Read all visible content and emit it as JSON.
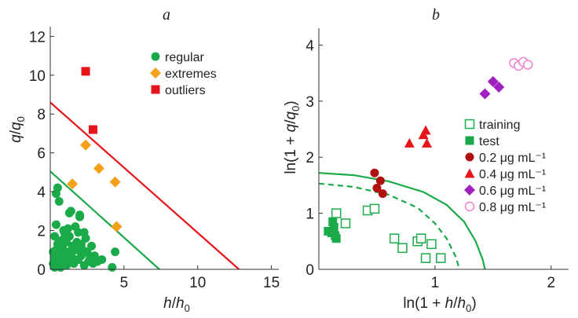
{
  "colors": {
    "regular": "#1aaa4a",
    "extremes": "#f5a01a",
    "outliers": "#e8141c",
    "line_red": "#e8141c",
    "line_green": "#1aaa4a",
    "training": "#1aaa4a",
    "test": "#1aaa4a",
    "c02": "#b01010",
    "c04": "#e8141c",
    "c06": "#a020c0",
    "c08": "#f080d0"
  },
  "chart_data": [
    {
      "type": "scatter",
      "panel_label": "a",
      "xlabel_parts": [
        "h",
        "/",
        "h",
        "0"
      ],
      "ylabel_parts": [
        "q",
        "/",
        "q",
        "0"
      ],
      "xlim": [
        0,
        15.5
      ],
      "ylim": [
        0,
        12.5
      ],
      "xticks": [
        5,
        10,
        15
      ],
      "yticks": [
        0,
        2,
        4,
        6,
        8,
        10,
        12
      ],
      "series": [
        {
          "name": "regular",
          "marker": "circle",
          "points": [
            [
              0.2,
              0.3
            ],
            [
              0.3,
              0.6
            ],
            [
              0.4,
              1.0
            ],
            [
              0.5,
              1.3
            ],
            [
              0.6,
              0.2
            ],
            [
              0.7,
              0.8
            ],
            [
              0.8,
              1.5
            ],
            [
              0.9,
              0.4
            ],
            [
              1.0,
              1.8
            ],
            [
              1.1,
              0.6
            ],
            [
              1.2,
              2.1
            ],
            [
              1.3,
              0.9
            ],
            [
              1.4,
              3.0
            ],
            [
              1.5,
              1.2
            ],
            [
              1.6,
              0.3
            ],
            [
              1.7,
              2.2
            ],
            [
              1.8,
              1.4
            ],
            [
              1.9,
              0.5
            ],
            [
              2.0,
              2.7
            ],
            [
              2.1,
              0.7
            ],
            [
              2.2,
              1.0
            ],
            [
              2.3,
              0.2
            ],
            [
              2.4,
              1.6
            ],
            [
              2.5,
              0.9
            ],
            [
              2.6,
              0.4
            ],
            [
              2.7,
              0.6
            ],
            [
              2.8,
              1.2
            ],
            [
              2.9,
              0.3
            ],
            [
              3.0,
              0.7
            ],
            [
              3.2,
              0.4
            ],
            [
              0.3,
              1.7
            ],
            [
              0.4,
              2.3
            ],
            [
              0.5,
              0.5
            ],
            [
              0.6,
              1.1
            ],
            [
              0.7,
              0.1
            ],
            [
              0.8,
              0.6
            ],
            [
              0.9,
              1.0
            ],
            [
              1.0,
              0.3
            ],
            [
              1.1,
              1.4
            ],
            [
              1.2,
              0.5
            ],
            [
              0.3,
              0.1
            ],
            [
              0.5,
              0.8
            ],
            [
              0.7,
              1.3
            ],
            [
              0.9,
              2.0
            ],
            [
              1.1,
              0.2
            ],
            [
              1.3,
              1.7
            ],
            [
              1.5,
              0.6
            ],
            [
              1.7,
              1.0
            ],
            [
              1.9,
              1.9
            ],
            [
              2.1,
              1.3
            ],
            [
              0.4,
              3.9
            ],
            [
              0.5,
              4.2
            ],
            [
              0.6,
              3.5
            ],
            [
              1.3,
              2.9
            ],
            [
              2.0,
              2.8
            ],
            [
              4.4,
              0.9
            ],
            [
              4.2,
              0.1
            ],
            [
              3.5,
              0.5
            ],
            [
              2.3,
              1.9
            ],
            [
              0.2,
              0.9
            ]
          ]
        },
        {
          "name": "extremes",
          "marker": "diamond",
          "points": [
            [
              1.5,
              4.4
            ],
            [
              2.4,
              6.4
            ],
            [
              3.3,
              5.2
            ],
            [
              4.4,
              4.5
            ],
            [
              4.5,
              2.2
            ]
          ]
        },
        {
          "name": "outliers",
          "marker": "square",
          "points": [
            [
              2.4,
              10.2
            ],
            [
              2.9,
              7.2
            ]
          ]
        }
      ],
      "lines": [
        {
          "color": "red",
          "from": [
            0,
            8.6
          ],
          "to": [
            12.8,
            0
          ]
        },
        {
          "color": "green",
          "from": [
            0,
            5.05
          ],
          "to": [
            7.4,
            0
          ]
        }
      ],
      "legend": [
        "regular",
        "extremes",
        "outliers"
      ],
      "legend_position": "top-right"
    },
    {
      "type": "scatter",
      "panel_label": "b",
      "xlabel_parts": [
        "ln(1 + ",
        "h",
        "/",
        "h",
        "0",
        ")"
      ],
      "ylabel_parts": [
        "ln(1 + ",
        "q",
        "/",
        "q",
        "0",
        ")"
      ],
      "xlim": [
        0,
        2.15
      ],
      "ylim": [
        0,
        4.3
      ],
      "xticks": [
        1,
        2
      ],
      "yticks": [
        0,
        1,
        2,
        3,
        4
      ],
      "series": [
        {
          "name": "training",
          "marker": "open-square",
          "points": [
            [
              0.15,
              1.0
            ],
            [
              0.23,
              0.82
            ],
            [
              0.42,
              1.05
            ],
            [
              0.48,
              1.08
            ],
            [
              0.65,
              0.55
            ],
            [
              0.72,
              0.38
            ],
            [
              0.85,
              0.5
            ],
            [
              0.88,
              0.55
            ],
            [
              0.92,
              0.2
            ],
            [
              0.97,
              0.45
            ],
            [
              1.05,
              0.2
            ]
          ]
        },
        {
          "name": "test",
          "marker": "filled-square",
          "points": [
            [
              0.08,
              0.68
            ],
            [
              0.11,
              0.65
            ],
            [
              0.13,
              0.75
            ],
            [
              0.14,
              0.6
            ],
            [
              0.15,
              0.55
            ],
            [
              0.12,
              0.85
            ]
          ]
        },
        {
          "name": "0.2 μg mL⁻¹",
          "marker": "circle",
          "points": [
            [
              0.48,
              1.72
            ],
            [
              0.5,
              1.45
            ],
            [
              0.53,
              1.58
            ],
            [
              0.55,
              1.35
            ]
          ]
        },
        {
          "name": "0.4 μg mL⁻¹",
          "marker": "triangle",
          "points": [
            [
              0.78,
              2.25
            ],
            [
              0.9,
              2.4
            ],
            [
              0.92,
              2.48
            ],
            [
              0.93,
              2.25
            ]
          ]
        },
        {
          "name": "0.6 μg mL⁻¹",
          "marker": "diamond",
          "points": [
            [
              1.43,
              3.13
            ],
            [
              1.5,
              3.35
            ],
            [
              1.55,
              3.25
            ]
          ]
        },
        {
          "name": "0.8 μg mL⁻¹",
          "marker": "open-circle",
          "points": [
            [
              1.68,
              3.68
            ],
            [
              1.72,
              3.63
            ],
            [
              1.76,
              3.7
            ],
            [
              1.8,
              3.65
            ]
          ]
        }
      ],
      "curves": [
        {
          "style": "solid",
          "points": [
            [
              0,
              1.72
            ],
            [
              0.3,
              1.68
            ],
            [
              0.6,
              1.57
            ],
            [
              0.9,
              1.38
            ],
            [
              1.1,
              1.15
            ],
            [
              1.25,
              0.85
            ],
            [
              1.35,
              0.5
            ],
            [
              1.41,
              0.18
            ],
            [
              1.43,
              0
            ]
          ]
        },
        {
          "style": "dashed",
          "points": [
            [
              0,
              1.53
            ],
            [
              0.3,
              1.47
            ],
            [
              0.6,
              1.33
            ],
            [
              0.85,
              1.1
            ],
            [
              1.0,
              0.82
            ],
            [
              1.1,
              0.55
            ],
            [
              1.18,
              0.22
            ],
            [
              1.21,
              0
            ]
          ]
        }
      ],
      "legend": [
        "training",
        "test",
        "0.2 μg mL⁻¹",
        "0.4 μg mL⁻¹",
        "0.6 μg mL⁻¹",
        "0.8 μg mL⁻¹"
      ],
      "legend_position": "center-right"
    }
  ]
}
